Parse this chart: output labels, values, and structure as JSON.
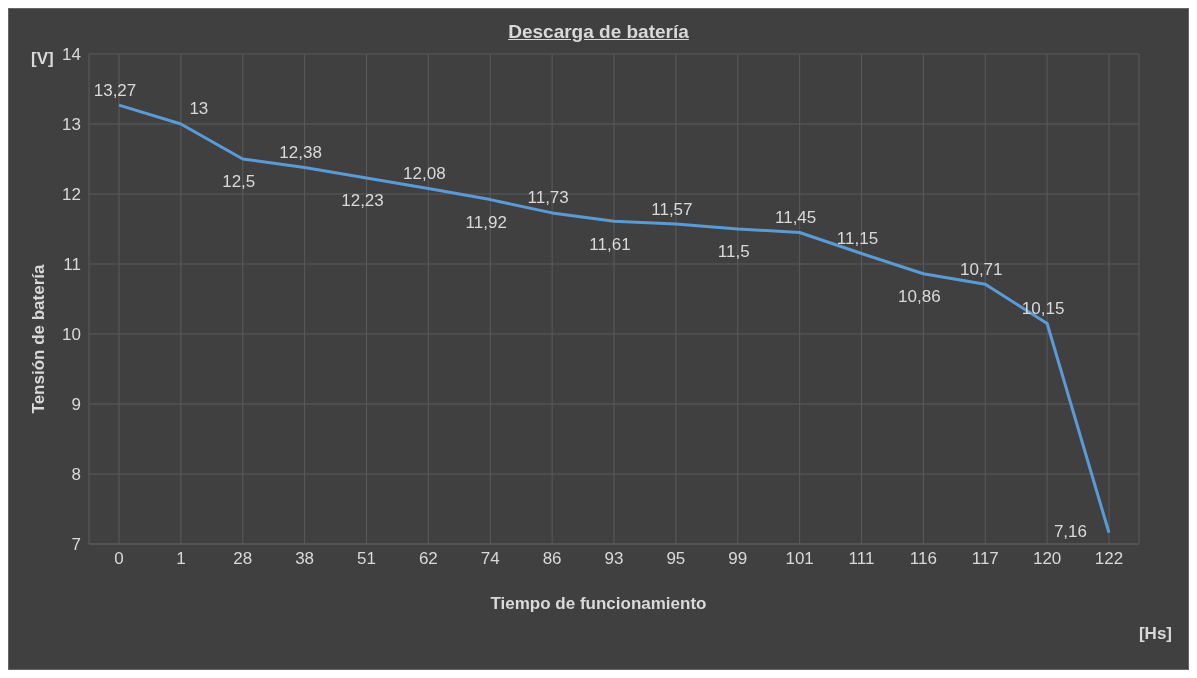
{
  "chart_data": {
    "type": "line",
    "title": "Descarga de batería",
    "xlabel": "Tiempo de funcionamiento",
    "ylabel": "Tensión de batería",
    "annotations": [
      "[V]",
      "[Hs]"
    ],
    "categories": [
      "0",
      "1",
      "28",
      "38",
      "51",
      "62",
      "74",
      "86",
      "93",
      "95",
      "99",
      "101",
      "111",
      "116",
      "117",
      "120",
      "122"
    ],
    "series": [
      {
        "color": "#5b9bd5",
        "values": [
          13.27,
          13,
          12.5,
          12.38,
          12.23,
          12.08,
          11.92,
          11.73,
          11.61,
          11.57,
          11.5,
          11.45,
          11.15,
          10.86,
          10.71,
          10.15,
          7.16
        ],
        "value_labels": [
          "13,27",
          "13",
          "12,5",
          "12,38",
          "12,23",
          "12,08",
          "11,92",
          "11,73",
          "11,61",
          "11,57",
          "11,5",
          "11,45",
          "11,15",
          "10,86",
          "10,71",
          "10,15",
          "7,16"
        ]
      }
    ],
    "ylim": [
      7,
      14
    ],
    "yticks": [
      7,
      8,
      9,
      10,
      11,
      12,
      13,
      14
    ],
    "grid": true,
    "marker": "none",
    "line_style": "solid"
  }
}
